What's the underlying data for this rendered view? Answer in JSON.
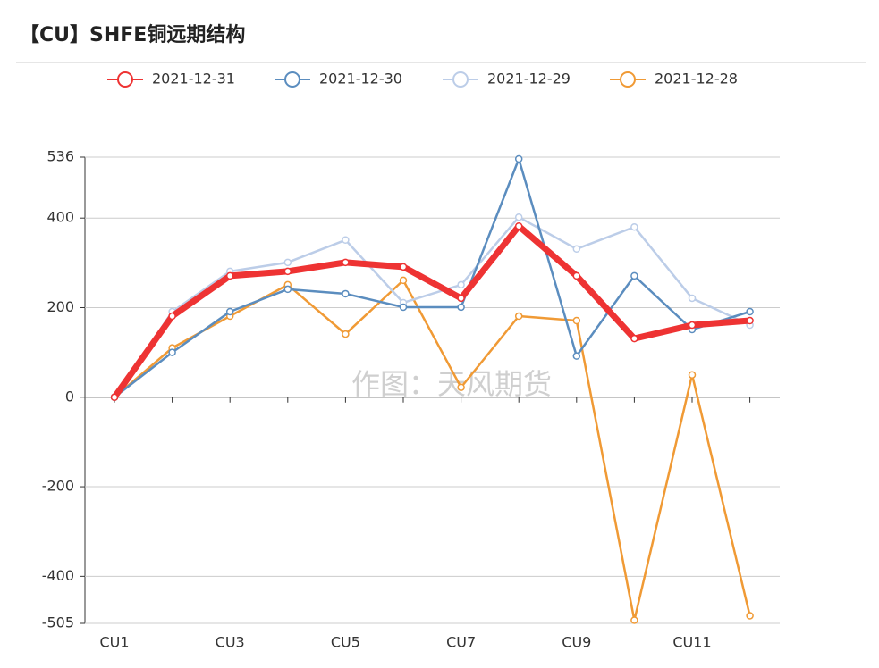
{
  "chart_data": {
    "type": "line",
    "title": "【CU】SHFE铜远期结构",
    "watermark": "作图：天风期货",
    "categories": [
      "CU1",
      null,
      "CU3",
      null,
      "CU5",
      null,
      "CU7",
      null,
      "CU9",
      null,
      "CU11",
      null
    ],
    "series": [
      {
        "name": "2021-12-31",
        "color": "#ee3333",
        "values": [
          0,
          181,
          271,
          281,
          301,
          291,
          221,
          382,
          271,
          131,
          161,
          171
        ]
      },
      {
        "name": "2021-12-30",
        "color": "#5b8dbf",
        "values": [
          0,
          100,
          191,
          241,
          231,
          201,
          201,
          532,
          92,
          271,
          151,
          191
        ]
      },
      {
        "name": "2021-12-29",
        "color": "#bccde8",
        "values": [
          0,
          191,
          281,
          301,
          351,
          211,
          251,
          402,
          331,
          380,
          221,
          161
        ]
      },
      {
        "name": "2021-12-28",
        "color": "#f09a35",
        "values": [
          0,
          110,
          181,
          251,
          141,
          261,
          22,
          181,
          171,
          -498,
          50,
          -488
        ]
      }
    ],
    "ylim": [
      -505,
      536
    ],
    "yticks": [
      536,
      400,
      200,
      0,
      -200,
      -400,
      -505
    ],
    "grid": true
  }
}
